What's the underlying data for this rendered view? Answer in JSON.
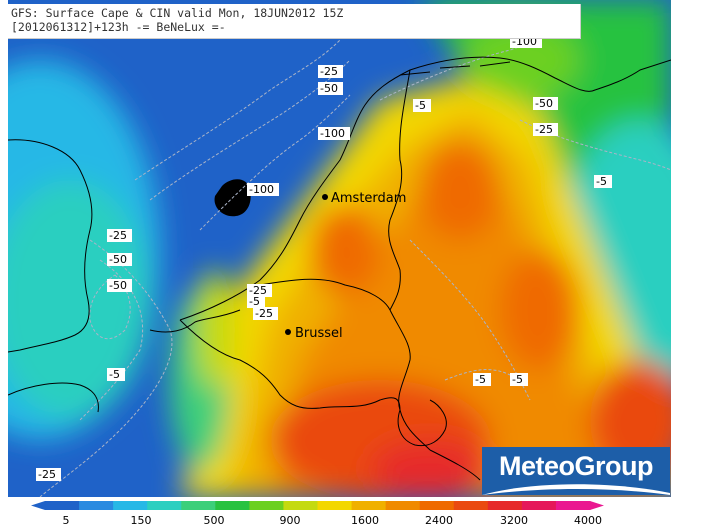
{
  "header": {
    "line1": "GFS: Surface Cape & CIN valid Mon, 18JUN2012 15Z",
    "line2": "[2012061312]+123h -= BeNeLux =-"
  },
  "cities": [
    {
      "name": "Amsterdam"
    },
    {
      "name": "Brussel"
    }
  ],
  "cin_contour_labels": [
    "-100",
    "-25",
    "-50",
    "-5",
    "-50",
    "-25",
    "-100",
    "-100",
    "-5",
    "-25",
    "-50",
    "-50",
    "-25",
    "-5",
    "-25",
    "-5",
    "-5",
    "-5",
    "-25"
  ],
  "colorbar": {
    "ticks": [
      "5",
      "150",
      "500",
      "900",
      "1600",
      "2400",
      "3200",
      "4000"
    ],
    "colors": [
      "#1f62c8",
      "#2a8ae0",
      "#27b8e6",
      "#2ccfc0",
      "#3ccf7a",
      "#28c240",
      "#6cd020",
      "#c4da10",
      "#f3d700",
      "#f0b000",
      "#f08a00",
      "#ef6a00",
      "#ea4a10",
      "#e62a2a",
      "#e5185a",
      "#ea1890"
    ]
  },
  "logo": {
    "text": "MeteoGroup",
    "colors": {
      "background": "#1d5ea8",
      "text": "#ffffff"
    }
  }
}
